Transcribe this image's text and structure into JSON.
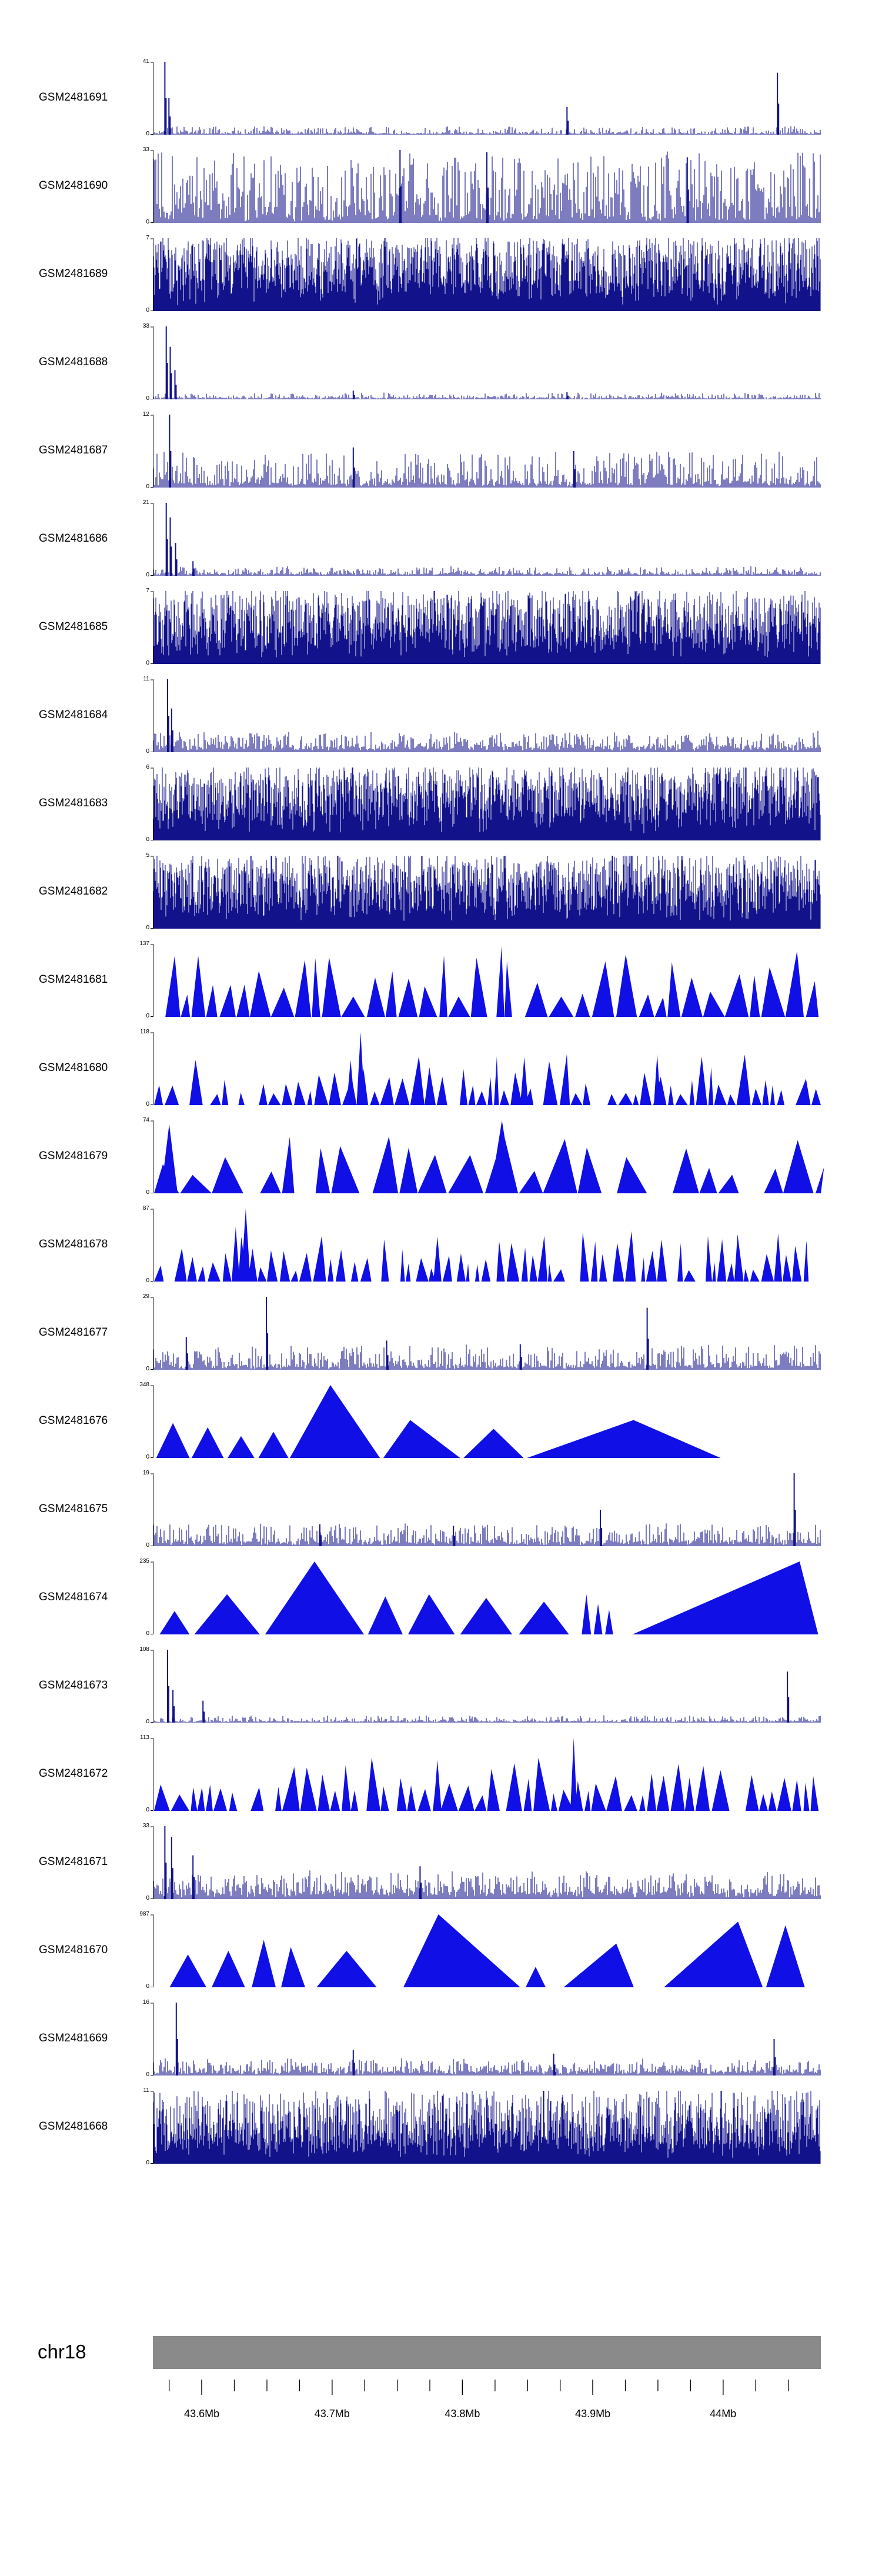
{
  "colors": {
    "spike": "#12128a",
    "peak": "#0f0fe6",
    "axis": "#000000",
    "ideogram": "#8a8a8a",
    "text": "#000000",
    "background": "#ffffff"
  },
  "chart_data": {
    "type": "area",
    "title": "",
    "description": "Stacked genome-browser coverage tracks for 24 GEO samples over a region of chromosome 18",
    "legend_position": "none",
    "grid": false,
    "y_zero_label": "0",
    "region": {
      "chromosome": "chr18",
      "axis_range_mb": [
        43.5625,
        44.075
      ],
      "tick_values_mb": [
        43.6,
        43.7,
        43.8,
        43.9,
        44.0
      ],
      "tick_labels": [
        "43.6Mb",
        "43.7Mb",
        "43.8Mb",
        "43.9Mb",
        "44Mb"
      ],
      "minor_tick_start_mb": 43.575,
      "minor_tick_step_mb": 0.025,
      "minor_tick_end_mb": 44.05
    },
    "tracks": [
      {
        "label": "GSM2481691",
        "ymax": "41",
        "style": "spikes",
        "step": 2,
        "base": 0.015,
        "amp": 0.1,
        "exp": 3.5,
        "peaks": [
          {
            "x": 0.018,
            "h": 1.0
          },
          {
            "x": 0.024,
            "h": 0.5
          },
          {
            "x": 0.62,
            "h": 0.38
          },
          {
            "x": 0.935,
            "h": 0.85
          }
        ]
      },
      {
        "label": "GSM2481690",
        "ymax": "33",
        "style": "spikes",
        "step": 2,
        "base": 0.05,
        "amp": 0.92,
        "exp": 1.8,
        "peaks": [
          {
            "x": 0.37,
            "h": 1.0
          },
          {
            "x": 0.5,
            "h": 0.97
          },
          {
            "x": 0.8,
            "h": 0.9
          }
        ]
      },
      {
        "label": "GSM2481689",
        "ymax": "7",
        "style": "spikes",
        "step": 1,
        "base": 0.18,
        "amp": 0.82,
        "exp": 1.0,
        "peaks": []
      },
      {
        "label": "GSM2481688",
        "ymax": "33",
        "style": "spikes",
        "step": 2,
        "base": 0.015,
        "amp": 0.07,
        "exp": 3.2,
        "peaks": [
          {
            "x": 0.02,
            "h": 1.0
          },
          {
            "x": 0.026,
            "h": 0.72
          },
          {
            "x": 0.033,
            "h": 0.4
          },
          {
            "x": 0.3,
            "h": 0.12
          },
          {
            "x": 0.62,
            "h": 0.1
          }
        ]
      },
      {
        "label": "GSM2481687",
        "ymax": "12",
        "style": "spikes",
        "step": 2,
        "base": 0.04,
        "amp": 0.45,
        "exp": 2.6,
        "peaks": [
          {
            "x": 0.025,
            "h": 1.0
          },
          {
            "x": 0.3,
            "h": 0.55
          },
          {
            "x": 0.63,
            "h": 0.5
          }
        ]
      },
      {
        "label": "GSM2481686",
        "ymax": "21",
        "style": "spikes",
        "step": 2,
        "base": 0.02,
        "amp": 0.1,
        "exp": 3.0,
        "peaks": [
          {
            "x": 0.02,
            "h": 1.0
          },
          {
            "x": 0.026,
            "h": 0.8
          },
          {
            "x": 0.034,
            "h": 0.45
          },
          {
            "x": 0.06,
            "h": 0.2
          }
        ]
      },
      {
        "label": "GSM2481685",
        "ymax": "7",
        "style": "spikes",
        "step": 1,
        "base": 0.16,
        "amp": 0.84,
        "exp": 1.0,
        "peaks": []
      },
      {
        "label": "GSM2481684",
        "ymax": "11",
        "style": "spikes",
        "step": 2,
        "base": 0.05,
        "amp": 0.22,
        "exp": 2.4,
        "peaks": [
          {
            "x": 0.022,
            "h": 1.0
          },
          {
            "x": 0.028,
            "h": 0.6
          }
        ]
      },
      {
        "label": "GSM2481683",
        "ymax": "6",
        "style": "spikes",
        "step": 1,
        "base": 0.2,
        "amp": 0.8,
        "exp": 0.95,
        "peaks": []
      },
      {
        "label": "GSM2481682",
        "ymax": "5",
        "style": "spikes",
        "step": 1,
        "base": 0.2,
        "amp": 0.8,
        "exp": 1.0,
        "peaks": []
      },
      {
        "label": "GSM2481681",
        "ymax": "137",
        "style": "peaks",
        "wMin": 12,
        "wMax": 42,
        "hBase": 0.25,
        "amp": 0.75,
        "hExp": 1.3,
        "gap": 0.12,
        "overlay": []
      },
      {
        "label": "GSM2481680",
        "ymax": "118",
        "style": "peaks",
        "wMin": 8,
        "wMax": 26,
        "hBase": 0.15,
        "amp": 0.55,
        "hExp": 1.4,
        "gap": 0.15,
        "overlay": [
          {
            "x": 0.305,
            "w": 0.012,
            "h": 1.0
          },
          {
            "x": 0.29,
            "w": 0.012,
            "h": 0.62
          },
          {
            "x": 0.55,
            "w": 0.012,
            "h": 0.66
          },
          {
            "x": 0.75,
            "w": 0.01,
            "h": 0.7
          }
        ]
      },
      {
        "label": "GSM2481679",
        "ymax": "74",
        "style": "peaks",
        "wMin": 20,
        "wMax": 60,
        "hBase": 0.25,
        "amp": 0.6,
        "hExp": 1.2,
        "gap": 0.12,
        "overlay": [
          {
            "x": 0.505,
            "w": 0.035,
            "h": 1.0
          },
          {
            "x": 0.012,
            "w": 0.025,
            "h": 0.95
          }
        ]
      },
      {
        "label": "GSM2481678",
        "ymax": "87",
        "style": "peaks",
        "wMin": 6,
        "wMax": 22,
        "hBase": 0.15,
        "amp": 0.55,
        "hExp": 1.5,
        "gap": 0.18,
        "overlay": [
          {
            "x": 0.132,
            "w": 0.014,
            "h": 1.0
          },
          {
            "x": 0.118,
            "w": 0.012,
            "h": 0.75
          },
          {
            "x": 0.42,
            "w": 0.012,
            "h": 0.62
          },
          {
            "x": 0.93,
            "w": 0.012,
            "h": 0.66
          }
        ]
      },
      {
        "label": "GSM2481677",
        "ymax": "29",
        "style": "spikes",
        "step": 2,
        "base": 0.035,
        "amp": 0.3,
        "exp": 2.6,
        "peaks": [
          {
            "x": 0.17,
            "h": 1.0
          },
          {
            "x": 0.05,
            "h": 0.45
          },
          {
            "x": 0.35,
            "h": 0.4
          },
          {
            "x": 0.74,
            "h": 0.85
          },
          {
            "x": 0.55,
            "h": 0.35
          }
        ]
      },
      {
        "label": "GSM2481676",
        "ymax": "348",
        "style": "triangles",
        "triangles": [
          {
            "x": 0.005,
            "w": 0.05,
            "h": 0.48
          },
          {
            "x": 0.058,
            "w": 0.048,
            "h": 0.42
          },
          {
            "x": 0.112,
            "w": 0.04,
            "h": 0.3
          },
          {
            "x": 0.158,
            "w": 0.045,
            "h": 0.36
          },
          {
            "x": 0.205,
            "w": 0.135,
            "h": 1.0,
            "a": 0.45
          },
          {
            "x": 0.345,
            "w": 0.115,
            "h": 0.52,
            "a": 0.35
          },
          {
            "x": 0.465,
            "w": 0.09,
            "h": 0.4
          },
          {
            "x": 0.56,
            "w": 0.29,
            "h": 0.52,
            "a": 0.55
          }
        ]
      },
      {
        "label": "GSM2481675",
        "ymax": "19",
        "style": "spikes",
        "step": 2,
        "base": 0.04,
        "amp": 0.26,
        "exp": 2.6,
        "peaks": [
          {
            "x": 0.96,
            "h": 1.0
          },
          {
            "x": 0.67,
            "h": 0.5
          },
          {
            "x": 0.25,
            "h": 0.3
          },
          {
            "x": 0.45,
            "h": 0.28
          }
        ]
      },
      {
        "label": "GSM2481674",
        "ymax": "235",
        "style": "triangles",
        "triangles": [
          {
            "x": 0.01,
            "w": 0.045,
            "h": 0.32
          },
          {
            "x": 0.062,
            "w": 0.098,
            "h": 0.55
          },
          {
            "x": 0.168,
            "w": 0.148,
            "h": 1.0,
            "a": 0.5
          },
          {
            "x": 0.322,
            "w": 0.052,
            "h": 0.52
          },
          {
            "x": 0.382,
            "w": 0.07,
            "h": 0.55,
            "a": 0.45
          },
          {
            "x": 0.46,
            "w": 0.078,
            "h": 0.5
          },
          {
            "x": 0.548,
            "w": 0.075,
            "h": 0.45
          },
          {
            "x": 0.642,
            "w": 0.014,
            "h": 0.55
          },
          {
            "x": 0.66,
            "w": 0.013,
            "h": 0.42
          },
          {
            "x": 0.677,
            "w": 0.012,
            "h": 0.34
          },
          {
            "x": 0.718,
            "w": 0.278,
            "h": 1.0,
            "a": 0.9
          }
        ]
      },
      {
        "label": "GSM2481673",
        "ymax": "108",
        "style": "spikes",
        "step": 2,
        "base": 0.015,
        "amp": 0.08,
        "exp": 3.2,
        "peaks": [
          {
            "x": 0.022,
            "h": 1.0
          },
          {
            "x": 0.03,
            "h": 0.45
          },
          {
            "x": 0.075,
            "h": 0.3
          },
          {
            "x": 0.95,
            "h": 0.7
          }
        ]
      },
      {
        "label": "GSM2481672",
        "ymax": "113",
        "style": "peaks",
        "wMin": 10,
        "wMax": 32,
        "hBase": 0.2,
        "amp": 0.55,
        "hExp": 1.3,
        "gap": 0.13,
        "overlay": [
          {
            "x": 0.625,
            "w": 0.01,
            "h": 1.0
          },
          {
            "x": 0.42,
            "w": 0.012,
            "h": 0.7
          }
        ]
      },
      {
        "label": "GSM2481671",
        "ymax": "33",
        "style": "spikes",
        "step": 2,
        "base": 0.06,
        "amp": 0.3,
        "exp": 2.4,
        "peaks": [
          {
            "x": 0.018,
            "h": 1.0
          },
          {
            "x": 0.028,
            "h": 0.85
          },
          {
            "x": 0.06,
            "h": 0.6
          },
          {
            "x": 0.4,
            "h": 0.45
          }
        ]
      },
      {
        "label": "GSM2481670",
        "ymax": "987",
        "style": "triangles",
        "triangles": [
          {
            "x": 0.025,
            "w": 0.055,
            "h": 0.45
          },
          {
            "x": 0.088,
            "w": 0.05,
            "h": 0.5
          },
          {
            "x": 0.148,
            "w": 0.036,
            "h": 0.65
          },
          {
            "x": 0.192,
            "w": 0.036,
            "h": 0.55,
            "a": 0.4
          },
          {
            "x": 0.245,
            "w": 0.09,
            "h": 0.5
          },
          {
            "x": 0.375,
            "w": 0.175,
            "h": 1.0,
            "a": 0.3
          },
          {
            "x": 0.558,
            "w": 0.03,
            "h": 0.28
          },
          {
            "x": 0.615,
            "w": 0.105,
            "h": 0.6,
            "a": 0.75
          },
          {
            "x": 0.765,
            "w": 0.148,
            "h": 0.9,
            "a": 0.75
          },
          {
            "x": 0.918,
            "w": 0.058,
            "h": 0.85
          }
        ]
      },
      {
        "label": "GSM2481669",
        "ymax": "16",
        "style": "spikes",
        "step": 2,
        "base": 0.04,
        "amp": 0.18,
        "exp": 2.6,
        "peaks": [
          {
            "x": 0.035,
            "h": 1.0
          },
          {
            "x": 0.3,
            "h": 0.35
          },
          {
            "x": 0.6,
            "h": 0.3
          },
          {
            "x": 0.93,
            "h": 0.5
          }
        ]
      },
      {
        "label": "GSM2481668",
        "ymax": "11",
        "style": "spikes",
        "step": 1,
        "base": 0.18,
        "amp": 0.8,
        "exp": 1.2,
        "peaks": []
      }
    ]
  }
}
